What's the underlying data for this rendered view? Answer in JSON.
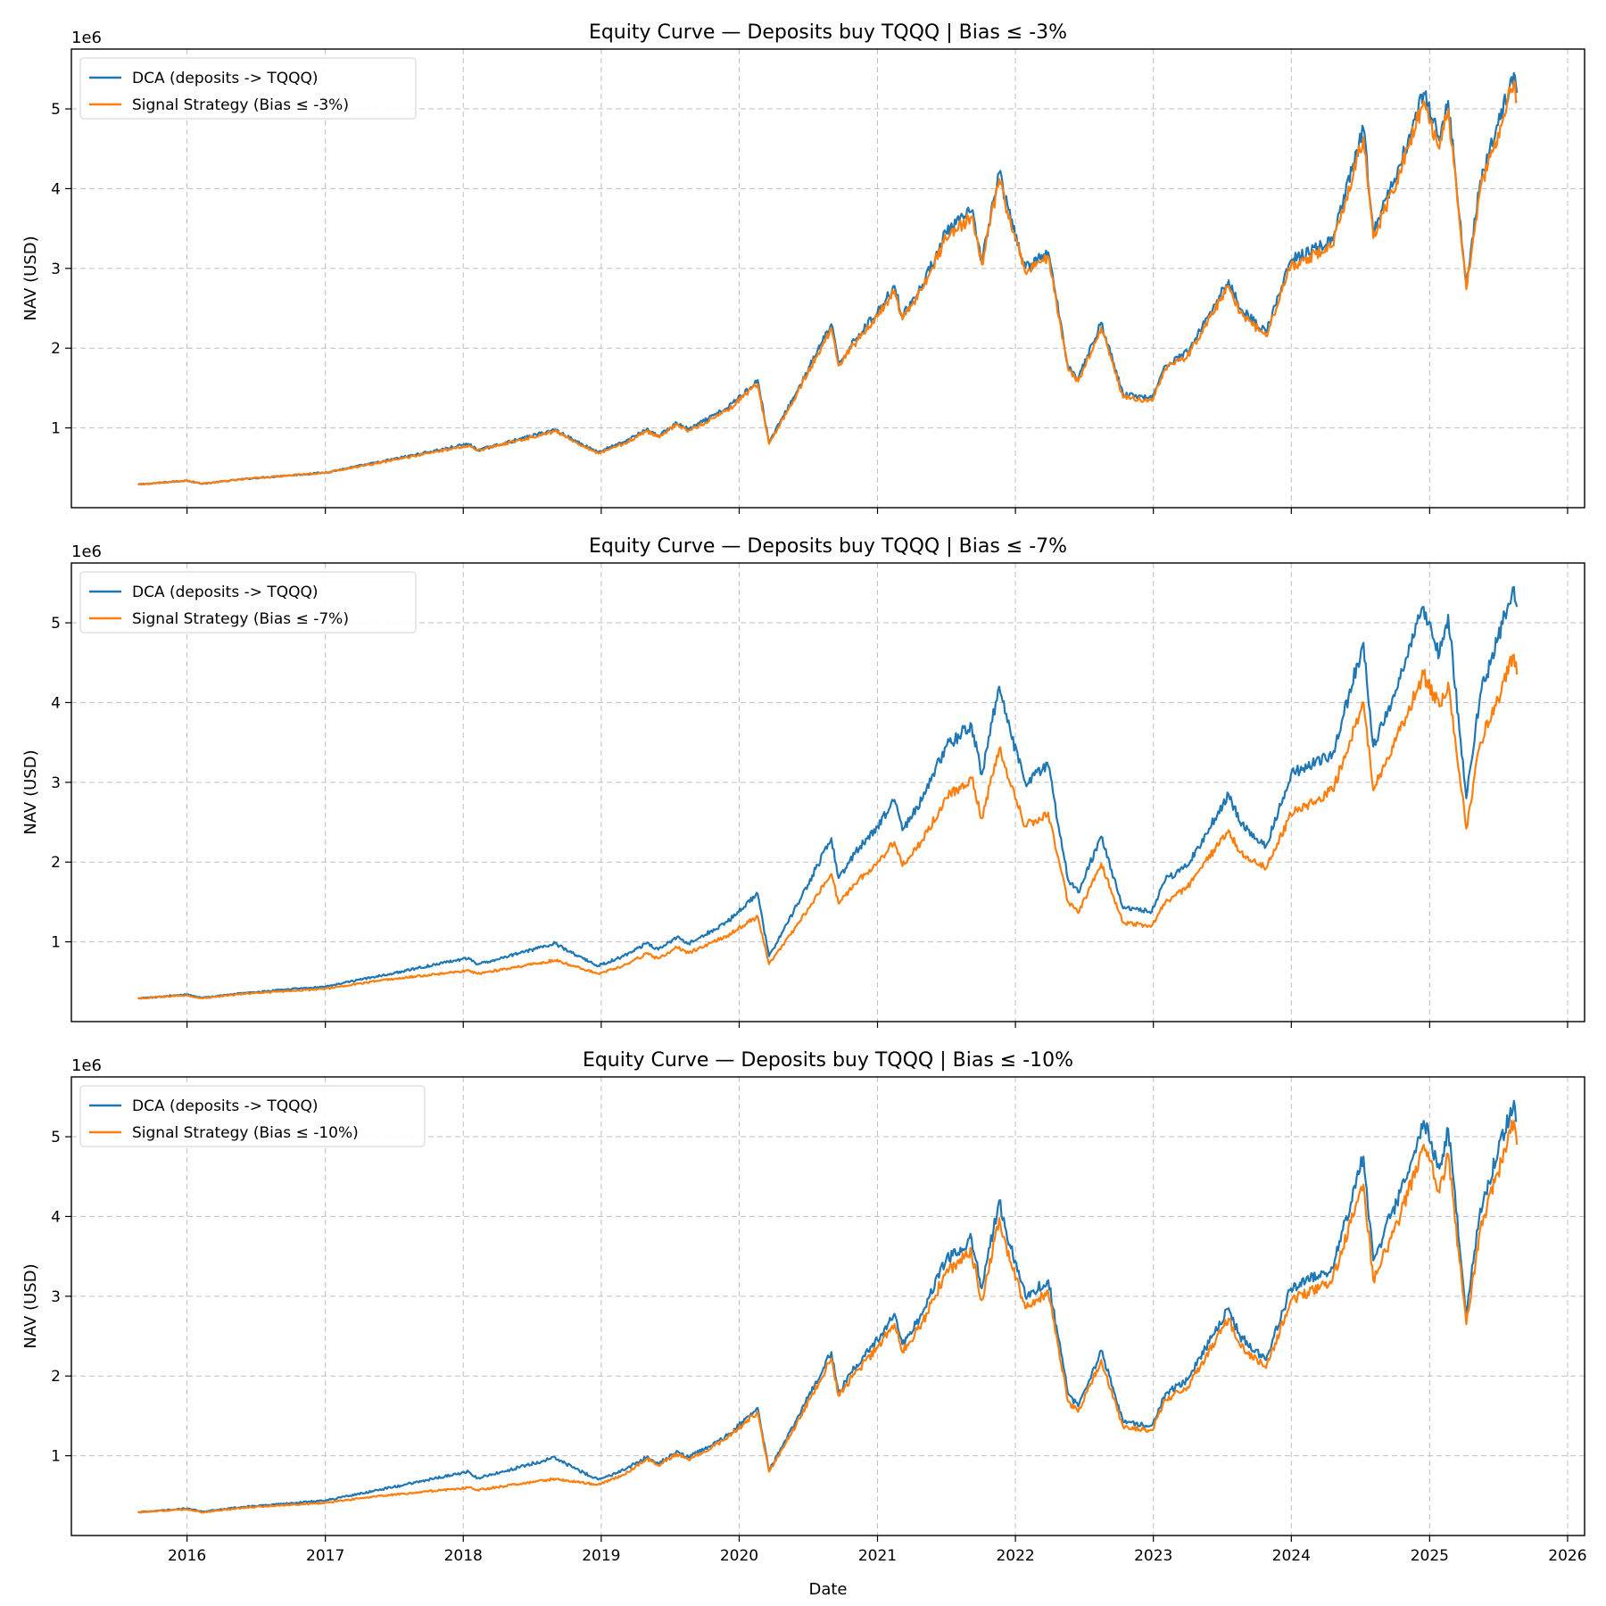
{
  "xlabel": "Date",
  "colors": {
    "dca": "#1f77b4",
    "signal": "#ff7f0e"
  },
  "x_ticks": [
    "2016",
    "2017",
    "2018",
    "2019",
    "2020",
    "2021",
    "2022",
    "2023",
    "2024",
    "2025",
    "2026"
  ],
  "y_ticks": [
    "1",
    "2",
    "3",
    "4",
    "5"
  ],
  "chart_data": [
    {
      "type": "line",
      "title": "Equity Curve — Deposits buy TQQQ | Bias ≤ -3%",
      "xlabel": "",
      "ylabel": "NAV (USD)",
      "y_offset_label": "1e6",
      "xlim": [
        "2015-03-01",
        "2026-02-15"
      ],
      "ylim": [
        0,
        5.75
      ],
      "y_unit_multiplier": 1000000,
      "grid": true,
      "legend_position": "upper left",
      "x": [
        "2015-08-24",
        "2016-01-01",
        "2016-02-10",
        "2016-06-01",
        "2017-01-01",
        "2017-06-01",
        "2018-01-15",
        "2018-02-08",
        "2018-06-01",
        "2018-09-01",
        "2018-10-15",
        "2018-12-24",
        "2019-03-01",
        "2019-05-01",
        "2019-06-01",
        "2019-07-20",
        "2019-08-20",
        "2019-12-01",
        "2020-02-19",
        "2020-03-20",
        "2020-06-01",
        "2020-09-01",
        "2020-09-20",
        "2020-11-01",
        "2021-01-01",
        "2021-02-15",
        "2021-03-08",
        "2021-05-01",
        "2021-07-01",
        "2021-09-07",
        "2021-10-04",
        "2021-11-19",
        "2021-12-20",
        "2022-01-27",
        "2022-03-29",
        "2022-05-20",
        "2022-06-16",
        "2022-08-16",
        "2022-10-13",
        "2022-12-28",
        "2023-02-02",
        "2023-04-01",
        "2023-07-19",
        "2023-08-18",
        "2023-10-26",
        "2023-12-31",
        "2024-04-19",
        "2024-07-10",
        "2024-08-05",
        "2024-10-15",
        "2024-12-16",
        "2025-01-27",
        "2025-02-19",
        "2025-04-08",
        "2025-05-15",
        "2025-07-01",
        "2025-08-12",
        "2025-08-20"
      ],
      "series": [
        {
          "name": "DCA (deposits -> TQQQ)",
          "values": [
            0.29,
            0.34,
            0.3,
            0.36,
            0.44,
            0.58,
            0.8,
            0.72,
            0.86,
            0.98,
            0.86,
            0.7,
            0.82,
            0.98,
            0.9,
            1.06,
            0.98,
            1.25,
            1.6,
            0.82,
            1.45,
            2.3,
            1.8,
            2.1,
            2.45,
            2.78,
            2.4,
            2.8,
            3.45,
            3.72,
            3.1,
            4.2,
            3.6,
            3.0,
            3.2,
            1.78,
            1.62,
            2.32,
            1.42,
            1.38,
            1.78,
            1.95,
            2.85,
            2.5,
            2.2,
            3.1,
            3.35,
            4.75,
            3.45,
            4.3,
            5.2,
            4.6,
            5.1,
            2.8,
            4.1,
            4.8,
            5.45,
            5.2
          ]
        },
        {
          "name": "Signal Strategy (Bias ≤ -3%)",
          "values": [
            0.29,
            0.34,
            0.3,
            0.36,
            0.44,
            0.57,
            0.78,
            0.72,
            0.85,
            0.96,
            0.85,
            0.68,
            0.8,
            0.96,
            0.89,
            1.04,
            0.96,
            1.22,
            1.55,
            0.8,
            1.42,
            2.25,
            1.78,
            2.05,
            2.4,
            2.72,
            2.36,
            2.75,
            3.38,
            3.65,
            3.05,
            4.12,
            3.55,
            2.95,
            3.15,
            1.74,
            1.58,
            2.26,
            1.38,
            1.34,
            1.74,
            1.9,
            2.78,
            2.44,
            2.15,
            3.02,
            3.28,
            4.65,
            3.38,
            4.2,
            5.1,
            4.5,
            5.0,
            2.74,
            4.0,
            4.7,
            5.35,
            5.1
          ]
        }
      ]
    },
    {
      "type": "line",
      "title": "Equity Curve — Deposits buy TQQQ | Bias ≤ -7%",
      "xlabel": "",
      "ylabel": "NAV (USD)",
      "y_offset_label": "1e6",
      "xlim": [
        "2015-03-01",
        "2026-02-15"
      ],
      "ylim": [
        0,
        5.75
      ],
      "y_unit_multiplier": 1000000,
      "grid": true,
      "legend_position": "upper left",
      "x": [
        "2015-08-24",
        "2016-01-01",
        "2016-02-10",
        "2016-06-01",
        "2017-01-01",
        "2017-06-01",
        "2018-01-15",
        "2018-02-08",
        "2018-06-01",
        "2018-09-01",
        "2018-10-15",
        "2018-12-24",
        "2019-03-01",
        "2019-05-01",
        "2019-06-01",
        "2019-07-20",
        "2019-08-20",
        "2019-12-01",
        "2020-02-19",
        "2020-03-20",
        "2020-06-01",
        "2020-09-01",
        "2020-09-20",
        "2020-11-01",
        "2021-01-01",
        "2021-02-15",
        "2021-03-08",
        "2021-05-01",
        "2021-07-01",
        "2021-09-07",
        "2021-10-04",
        "2021-11-19",
        "2021-12-20",
        "2022-01-27",
        "2022-03-29",
        "2022-05-20",
        "2022-06-16",
        "2022-08-16",
        "2022-10-13",
        "2022-12-28",
        "2023-02-02",
        "2023-04-01",
        "2023-07-19",
        "2023-08-18",
        "2023-10-26",
        "2023-12-31",
        "2024-04-19",
        "2024-07-10",
        "2024-08-05",
        "2024-10-15",
        "2024-12-16",
        "2025-01-27",
        "2025-02-19",
        "2025-04-08",
        "2025-05-15",
        "2025-07-01",
        "2025-08-12",
        "2025-08-20"
      ],
      "series": [
        {
          "name": "DCA (deposits -> TQQQ)",
          "values": [
            0.29,
            0.34,
            0.3,
            0.36,
            0.44,
            0.58,
            0.8,
            0.72,
            0.86,
            0.98,
            0.86,
            0.7,
            0.82,
            0.98,
            0.9,
            1.06,
            0.98,
            1.25,
            1.6,
            0.82,
            1.45,
            2.3,
            1.8,
            2.1,
            2.45,
            2.78,
            2.4,
            2.8,
            3.45,
            3.72,
            3.1,
            4.2,
            3.6,
            3.0,
            3.2,
            1.78,
            1.62,
            2.32,
            1.42,
            1.38,
            1.78,
            1.95,
            2.85,
            2.5,
            2.2,
            3.1,
            3.35,
            4.75,
            3.45,
            4.3,
            5.2,
            4.6,
            5.1,
            2.8,
            4.1,
            4.8,
            5.45,
            5.2
          ]
        },
        {
          "name": "Signal Strategy (Bias ≤ -7%)",
          "values": [
            0.29,
            0.33,
            0.29,
            0.35,
            0.41,
            0.52,
            0.64,
            0.6,
            0.69,
            0.77,
            0.7,
            0.6,
            0.7,
            0.85,
            0.79,
            0.93,
            0.86,
            1.08,
            1.32,
            0.72,
            1.2,
            1.85,
            1.48,
            1.72,
            2.0,
            2.25,
            1.95,
            2.28,
            2.8,
            3.05,
            2.55,
            3.42,
            2.95,
            2.45,
            2.62,
            1.5,
            1.36,
            1.98,
            1.24,
            1.2,
            1.5,
            1.68,
            2.4,
            2.12,
            1.92,
            2.6,
            2.9,
            4.0,
            2.9,
            3.65,
            4.35,
            3.95,
            4.25,
            2.42,
            3.5,
            4.05,
            4.6,
            4.35
          ]
        }
      ]
    },
    {
      "type": "line",
      "title": "Equity Curve — Deposits buy TQQQ | Bias ≤ -10%",
      "xlabel": "Date",
      "ylabel": "NAV (USD)",
      "y_offset_label": "1e6",
      "xlim": [
        "2015-03-01",
        "2026-02-15"
      ],
      "ylim": [
        0,
        5.75
      ],
      "y_unit_multiplier": 1000000,
      "grid": true,
      "legend_position": "upper left",
      "x": [
        "2015-08-24",
        "2016-01-01",
        "2016-02-10",
        "2016-06-01",
        "2017-01-01",
        "2017-06-01",
        "2018-01-15",
        "2018-02-08",
        "2018-06-01",
        "2018-09-01",
        "2018-10-15",
        "2018-12-24",
        "2019-03-01",
        "2019-05-01",
        "2019-06-01",
        "2019-07-20",
        "2019-08-20",
        "2019-12-01",
        "2020-02-19",
        "2020-03-20",
        "2020-06-01",
        "2020-09-01",
        "2020-09-20",
        "2020-11-01",
        "2021-01-01",
        "2021-02-15",
        "2021-03-08",
        "2021-05-01",
        "2021-07-01",
        "2021-09-07",
        "2021-10-04",
        "2021-11-19",
        "2021-12-20",
        "2022-01-27",
        "2022-03-29",
        "2022-05-20",
        "2022-06-16",
        "2022-08-16",
        "2022-10-13",
        "2022-12-28",
        "2023-02-02",
        "2023-04-01",
        "2023-07-19",
        "2023-08-18",
        "2023-10-26",
        "2023-12-31",
        "2024-04-19",
        "2024-07-10",
        "2024-08-05",
        "2024-10-15",
        "2024-12-16",
        "2025-01-27",
        "2025-02-19",
        "2025-04-08",
        "2025-05-15",
        "2025-07-01",
        "2025-08-12",
        "2025-08-20"
      ],
      "series": [
        {
          "name": "DCA (deposits -> TQQQ)",
          "values": [
            0.29,
            0.34,
            0.3,
            0.36,
            0.44,
            0.58,
            0.8,
            0.72,
            0.86,
            0.98,
            0.86,
            0.7,
            0.82,
            0.98,
            0.9,
            1.06,
            0.98,
            1.25,
            1.6,
            0.82,
            1.45,
            2.3,
            1.8,
            2.1,
            2.45,
            2.78,
            2.4,
            2.8,
            3.45,
            3.72,
            3.1,
            4.2,
            3.6,
            3.0,
            3.2,
            1.78,
            1.62,
            2.32,
            1.42,
            1.38,
            1.78,
            1.95,
            2.85,
            2.5,
            2.2,
            3.1,
            3.35,
            4.75,
            3.45,
            4.3,
            5.2,
            4.6,
            5.1,
            2.8,
            4.1,
            4.8,
            5.45,
            5.2
          ]
        },
        {
          "name": "Signal Strategy (Bias ≤ -10%)",
          "values": [
            0.29,
            0.33,
            0.29,
            0.35,
            0.41,
            0.5,
            0.6,
            0.57,
            0.65,
            0.71,
            0.68,
            0.64,
            0.76,
            0.96,
            0.88,
            1.02,
            0.95,
            1.22,
            1.55,
            0.8,
            1.4,
            2.22,
            1.75,
            2.02,
            2.36,
            2.65,
            2.3,
            2.68,
            3.3,
            3.55,
            2.95,
            3.98,
            3.42,
            2.85,
            3.05,
            1.68,
            1.55,
            2.2,
            1.36,
            1.32,
            1.7,
            1.86,
            2.72,
            2.38,
            2.1,
            2.95,
            3.2,
            4.4,
            3.2,
            4.0,
            4.9,
            4.3,
            4.78,
            2.65,
            3.85,
            4.55,
            5.2,
            4.9
          ]
        }
      ]
    }
  ]
}
